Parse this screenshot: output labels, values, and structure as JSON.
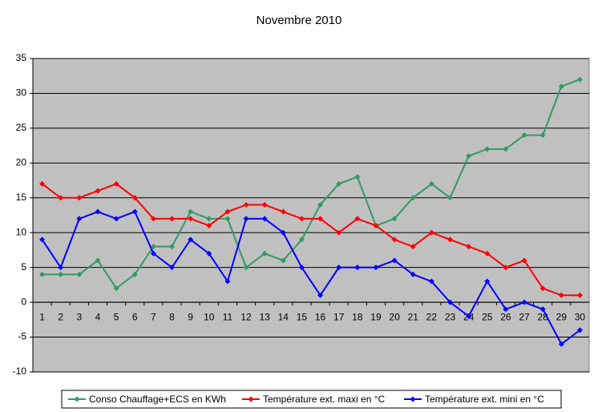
{
  "chart_data": {
    "type": "line",
    "title": "Novembre 2010",
    "categories": [
      "1",
      "2",
      "3",
      "4",
      "5",
      "6",
      "7",
      "8",
      "9",
      "10",
      "11",
      "12",
      "13",
      "14",
      "15",
      "16",
      "17",
      "18",
      "19",
      "20",
      "21",
      "22",
      "23",
      "24",
      "25",
      "26",
      "27",
      "28",
      "29",
      "30"
    ],
    "series": [
      {
        "name": "Conso Chauffage+ECS en KWh",
        "color": "#339966",
        "values": [
          4,
          4,
          4,
          6,
          2,
          4,
          8,
          8,
          13,
          12,
          12,
          5,
          7,
          6,
          9,
          14,
          17,
          18,
          11,
          12,
          15,
          17,
          15,
          21,
          22,
          22,
          24,
          24,
          31,
          32
        ]
      },
      {
        "name": "Température ext. maxi en °C",
        "color": "#ff0000",
        "values": [
          17,
          15,
          15,
          16,
          17,
          15,
          12,
          12,
          12,
          11,
          13,
          14,
          14,
          13,
          12,
          12,
          10,
          12,
          11,
          9,
          8,
          10,
          9,
          8,
          7,
          5,
          6,
          2,
          1,
          1
        ]
      },
      {
        "name": "Température ext. mini en °C",
        "color": "#0000ff",
        "values": [
          9,
          5,
          12,
          13,
          12,
          13,
          7,
          5,
          9,
          7,
          3,
          12,
          12,
          10,
          5,
          1,
          5,
          5,
          5,
          6,
          4,
          3,
          0,
          -2,
          3,
          -1,
          0,
          -1,
          -6,
          -4
        ]
      }
    ],
    "ylim": [
      -10,
      35
    ],
    "yticks": [
      -10,
      -5,
      0,
      5,
      10,
      15,
      20,
      25,
      30,
      35
    ],
    "grid": true,
    "legend": "bottom"
  }
}
